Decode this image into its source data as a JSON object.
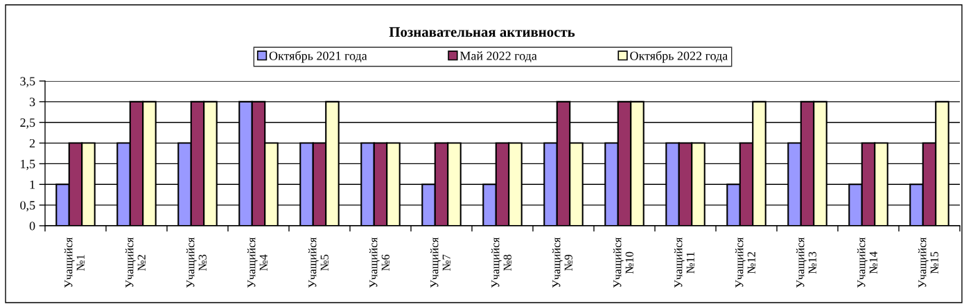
{
  "chart_data": {
    "type": "bar",
    "title": "Познавательная активность",
    "categories": [
      "Учащийся\n№1",
      "Учащийся\n№2",
      "Учащийся\n№3",
      "Учащийся\n№4",
      "Учащийся\n№5",
      "Учащийся\n№6",
      "Учащийся\n№7",
      "Учащийся\n№8",
      "Учащийся\n№9",
      "Учащийся\n№10",
      "Учащийся\n№11",
      "Учащийся\n№12",
      "Учащийся\n№13",
      "Учащийся\n№14",
      "Учащийся\n№15"
    ],
    "series": [
      {
        "name": "Октябрь 2021 года",
        "color": "#9999ff",
        "values": [
          1,
          2,
          2,
          3,
          2,
          2,
          1,
          1,
          2,
          2,
          2,
          1,
          2,
          1,
          1
        ]
      },
      {
        "name": "Май 2022 года",
        "color": "#993366",
        "values": [
          2,
          3,
          3,
          3,
          2,
          2,
          2,
          2,
          3,
          3,
          2,
          2,
          3,
          2,
          2
        ]
      },
      {
        "name": "Октябрь 2022 года",
        "color": "#ffffcc",
        "values": [
          2,
          3,
          3,
          2,
          3,
          2,
          2,
          2,
          2,
          3,
          2,
          3,
          3,
          2,
          3
        ]
      }
    ],
    "ylim": [
      0,
      3.5
    ],
    "yticks": [
      0,
      {
        "value": 0.5,
        "label": "0,5"
      },
      1,
      {
        "value": 1.5,
        "label": "1,5"
      },
      2,
      {
        "value": 2.5,
        "label": "2,5"
      },
      3,
      {
        "value": 3.5,
        "label": "3,5"
      }
    ],
    "grid": "y",
    "legend": "top"
  }
}
